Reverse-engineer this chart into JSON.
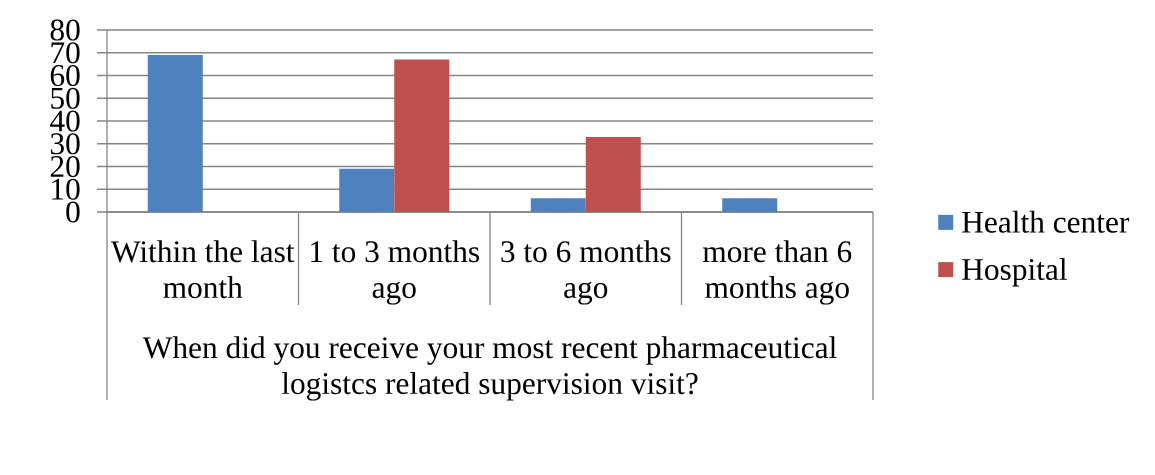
{
  "chart_data": {
    "type": "bar",
    "categories": [
      "Within the last month",
      "1 to 3 months ago",
      "3 to 6 months ago",
      "more than 6 months ago"
    ],
    "xlabel": "When did you receive your most recent pharmaceutical logistcs related supervision visit?",
    "series": [
      {
        "name": "Health center",
        "color": "#4f81bd",
        "values": [
          69,
          19,
          6,
          6
        ]
      },
      {
        "name": "Hospital",
        "color": "#c0504d",
        "values": [
          null,
          67,
          33,
          null
        ]
      }
    ],
    "ylim": [
      0,
      80
    ],
    "yticks": [
      0,
      10,
      20,
      30,
      40,
      50,
      60,
      70,
      80
    ],
    "grid": "y",
    "legend": "right"
  }
}
